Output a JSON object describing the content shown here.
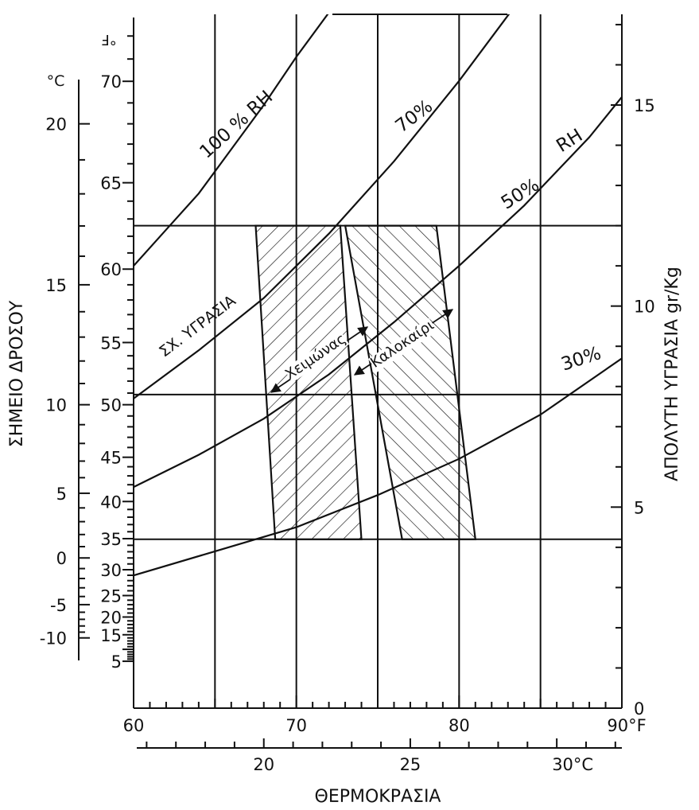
{
  "chart_data": {
    "type": "line",
    "title": "",
    "xlabel": "ΘΕΡΜΟΚΡΑΣΙΑ",
    "ylabel_left": "ΣΗΜΕΙΟ ΔΡΟΣΟΥ",
    "ylabel_right": "ΑΠΟΛΥΤΗ ΥΓΡΑΣΙΑ gr/Kg",
    "x_range_F": [
      60,
      90
    ],
    "x_ticks_F": [
      "60",
      "70",
      "80",
      "90°F"
    ],
    "x_ticks_C": [
      "20",
      "25",
      "30°C"
    ],
    "y_range_abs_humidity": [
      0,
      17.5
    ],
    "y_ticks_right": [
      "0",
      "5",
      "10",
      "15"
    ],
    "y_ticks_dewpoint_F": [
      "5",
      "15",
      "20",
      "25",
      "30",
      "35",
      "40",
      "45",
      "50",
      "55",
      "60",
      "65",
      "70"
    ],
    "y_unit_dewpoint_F": "°F",
    "y_ticks_dewpoint_C": [
      "-10",
      "-5",
      "0",
      "5",
      "10",
      "15",
      "20"
    ],
    "y_unit_dewpoint_C": "°C",
    "horizontal_lines_abs_humidity": [
      4.2,
      7.8,
      12
    ],
    "vertical_lines_F": [
      65,
      70,
      75,
      80,
      85
    ],
    "series": [
      {
        "name": "100 % RH",
        "x_F": [
          60,
          62,
          64,
          66,
          68,
          70,
          72,
          72.6
        ],
        "y": [
          11,
          11.9,
          12.8,
          13.9,
          15.0,
          16.2,
          17.3,
          17.5
        ]
      },
      {
        "name": "70%",
        "x_F": [
          60,
          64,
          68,
          72,
          76,
          80,
          83.5
        ],
        "y": [
          7.7,
          8.9,
          10.2,
          11.8,
          13.6,
          15.6,
          17.5
        ]
      },
      {
        "name": "50%",
        "x_F": [
          60,
          64,
          68,
          72,
          76,
          80,
          84,
          88,
          90
        ],
        "y": [
          5.5,
          6.3,
          7.2,
          8.3,
          9.6,
          11.0,
          12.5,
          14.2,
          15.2
        ]
      },
      {
        "name": "30%",
        "x_F": [
          60,
          65,
          70,
          75,
          80,
          85,
          90
        ],
        "y": [
          3.3,
          3.9,
          4.5,
          5.3,
          6.2,
          7.3,
          8.7
        ]
      }
    ],
    "annotations": {
      "rh_unit_label": "RH",
      "specific_humidity": "ΣΧ. ΥΓΡΑΣΙΑ",
      "winter": "Χειμώνας",
      "summer": "Καλοκαίρι"
    },
    "zones": [
      {
        "name": "Χειμώνας",
        "polygon_F_gkg": [
          [
            67.5,
            12
          ],
          [
            72.7,
            12
          ],
          [
            74.0,
            4.2
          ],
          [
            68.7,
            4.2
          ]
        ]
      },
      {
        "name": "Καλοκαίρι",
        "polygon_F_gkg": [
          [
            73.0,
            12
          ],
          [
            78.6,
            12
          ],
          [
            81.0,
            4.2
          ],
          [
            76.5,
            4.2
          ]
        ]
      }
    ],
    "grid": true,
    "legend": "none"
  }
}
